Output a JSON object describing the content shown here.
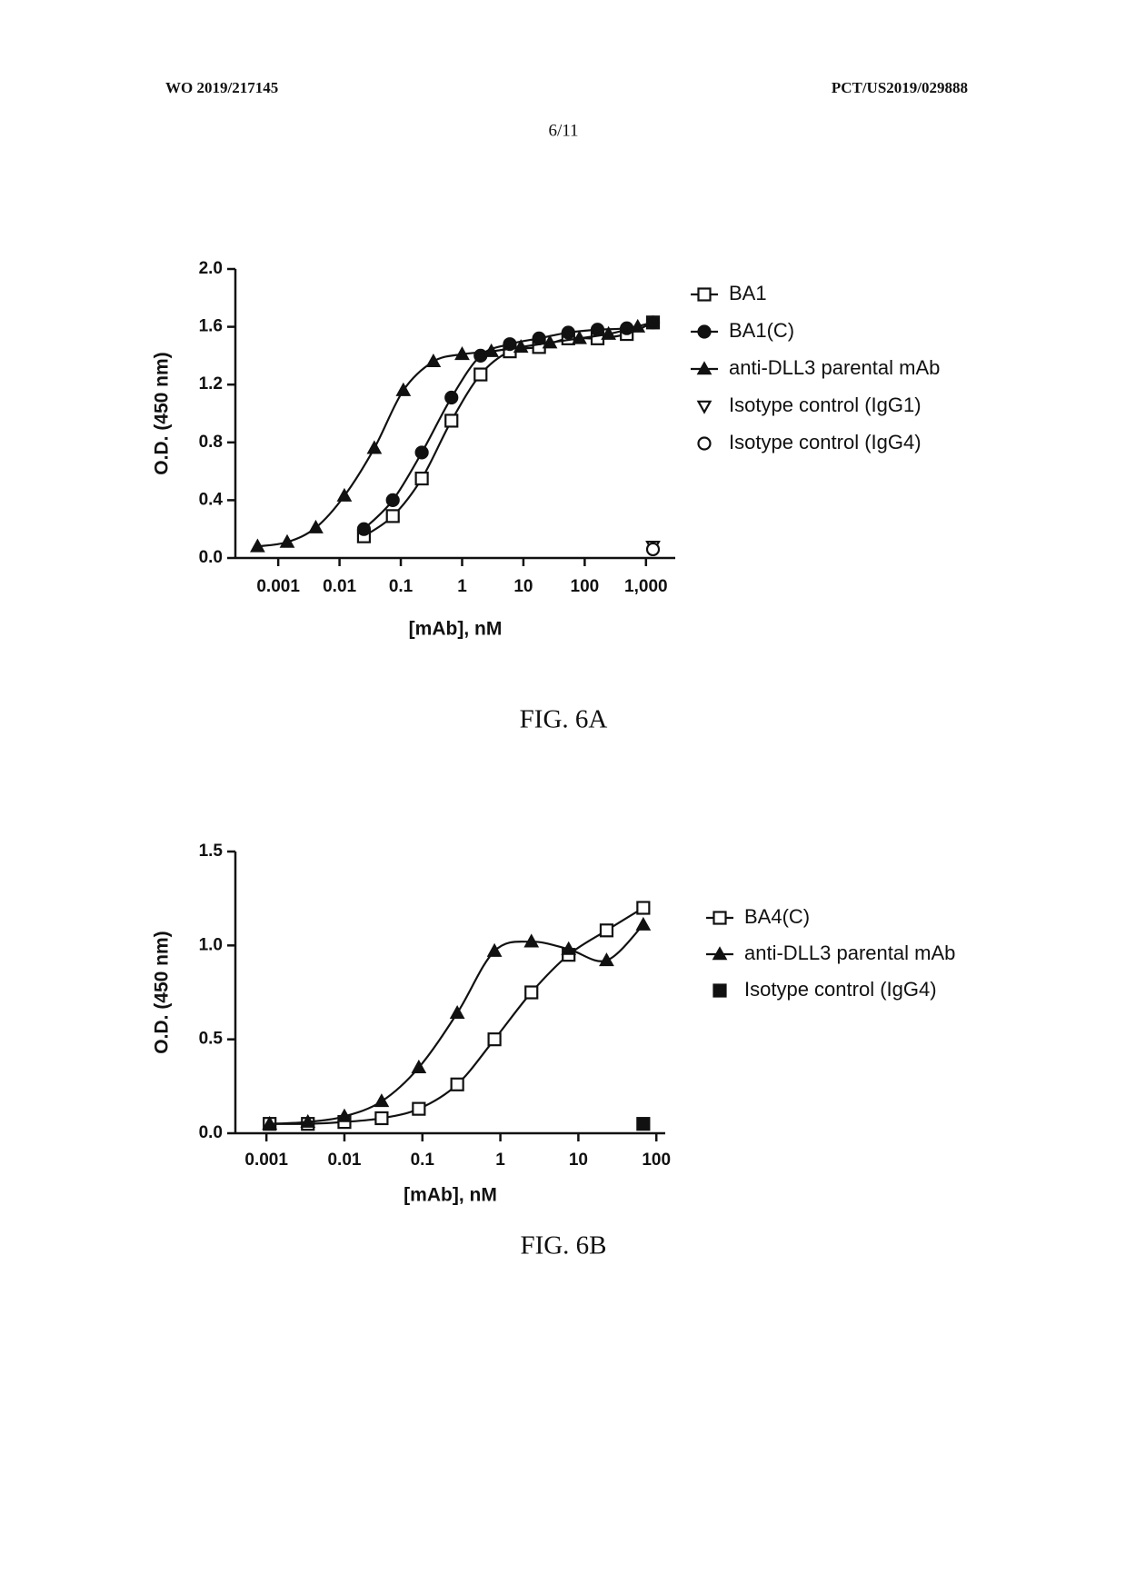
{
  "header": {
    "left": "WO 2019/217145",
    "right": "PCT/US2019/029888",
    "page": "6/11"
  },
  "chart_data": [
    {
      "type": "scatter",
      "caption": "FIG. 6A",
      "x_label": "[mAb], nM",
      "y_label": "O.D. (450 nm)",
      "xscale": "log",
      "xlim": [
        0.0002,
        3000
      ],
      "xticks": [
        0.001,
        0.01,
        0.1,
        1,
        10,
        100,
        {
          "value": 1000,
          "label": "1,000"
        }
      ],
      "ylim": [
        0,
        2
      ],
      "yticks": [
        {
          "value": 0,
          "label": "0.0"
        },
        0.4,
        0.8,
        1.2,
        1.6,
        {
          "value": 2,
          "label": "2.0"
        }
      ],
      "series": [
        {
          "name": "BA1",
          "color": "#111111",
          "marker": "square-open",
          "line": true,
          "x": [
            0.025,
            0.074,
            0.22,
            0.67,
            2,
            6,
            18,
            54,
            162,
            486,
            1300
          ],
          "values": [
            0.15,
            0.29,
            0.55,
            0.95,
            1.27,
            1.43,
            1.46,
            1.52,
            1.52,
            1.55,
            1.63
          ]
        },
        {
          "name": "BA1(C)",
          "color": "#111111",
          "marker": "circle-filled",
          "line": true,
          "x": [
            0.025,
            0.074,
            0.22,
            0.67,
            2,
            6,
            18,
            54,
            162,
            486,
            1300
          ],
          "values": [
            0.2,
            0.4,
            0.73,
            1.11,
            1.4,
            1.48,
            1.52,
            1.56,
            1.58,
            1.59,
            1.63
          ]
        },
        {
          "name": "anti-DLL3 parental mAb",
          "color": "#111111",
          "marker": "triangle-filled",
          "line": true,
          "x": [
            0.00046,
            0.0014,
            0.0041,
            0.012,
            0.037,
            0.11,
            0.34,
            1,
            3,
            9.1,
            27,
            82,
            245,
            733
          ],
          "values": [
            0.08,
            0.11,
            0.21,
            0.43,
            0.76,
            1.16,
            1.36,
            1.41,
            1.43,
            1.46,
            1.49,
            1.52,
            1.55,
            1.6
          ]
        },
        {
          "name": "Isotype control (IgG1)",
          "color": "#111111",
          "marker": "triangle-down-open",
          "line": false,
          "x": [
            1300
          ],
          "values": [
            0.08
          ]
        },
        {
          "name": "Isotype control (IgG4)",
          "color": "#111111",
          "marker": "circle-open",
          "line": false,
          "x": [
            1300
          ],
          "values": [
            0.06
          ]
        }
      ]
    },
    {
      "type": "scatter",
      "caption": "FIG. 6B",
      "x_label": "[mAb], nM",
      "y_label": "O.D. (450 nm)",
      "xscale": "log",
      "xlim": [
        0.0004,
        130
      ],
      "xticks": [
        0.001,
        0.01,
        0.1,
        1,
        10,
        100
      ],
      "ylim": [
        0,
        1.5
      ],
      "yticks": [
        {
          "value": 0,
          "label": "0.0"
        },
        0.5,
        {
          "value": 1,
          "label": "1.0"
        },
        1.5
      ],
      "series": [
        {
          "name": "BA4(C)",
          "color": "#111111",
          "marker": "square-open",
          "line": true,
          "x": [
            0.0011,
            0.0034,
            0.01,
            0.03,
            0.09,
            0.28,
            0.84,
            2.5,
            7.5,
            23,
            68
          ],
          "values": [
            0.05,
            0.05,
            0.06,
            0.08,
            0.13,
            0.26,
            0.5,
            0.75,
            0.95,
            1.08,
            1.2
          ]
        },
        {
          "name": "anti-DLL3 parental mAb",
          "color": "#111111",
          "marker": "triangle-filled",
          "line": true,
          "x": [
            0.0011,
            0.0034,
            0.01,
            0.03,
            0.09,
            0.28,
            0.84,
            2.5,
            7.5,
            23,
            68
          ],
          "values": [
            0.05,
            0.06,
            0.09,
            0.17,
            0.35,
            0.64,
            0.97,
            1.02,
            0.98,
            0.92,
            1.11
          ]
        },
        {
          "name": "Isotype control (IgG4)",
          "color": "#111111",
          "marker": "square-filled",
          "line": false,
          "x": [
            68
          ],
          "values": [
            0.05
          ]
        }
      ]
    }
  ]
}
